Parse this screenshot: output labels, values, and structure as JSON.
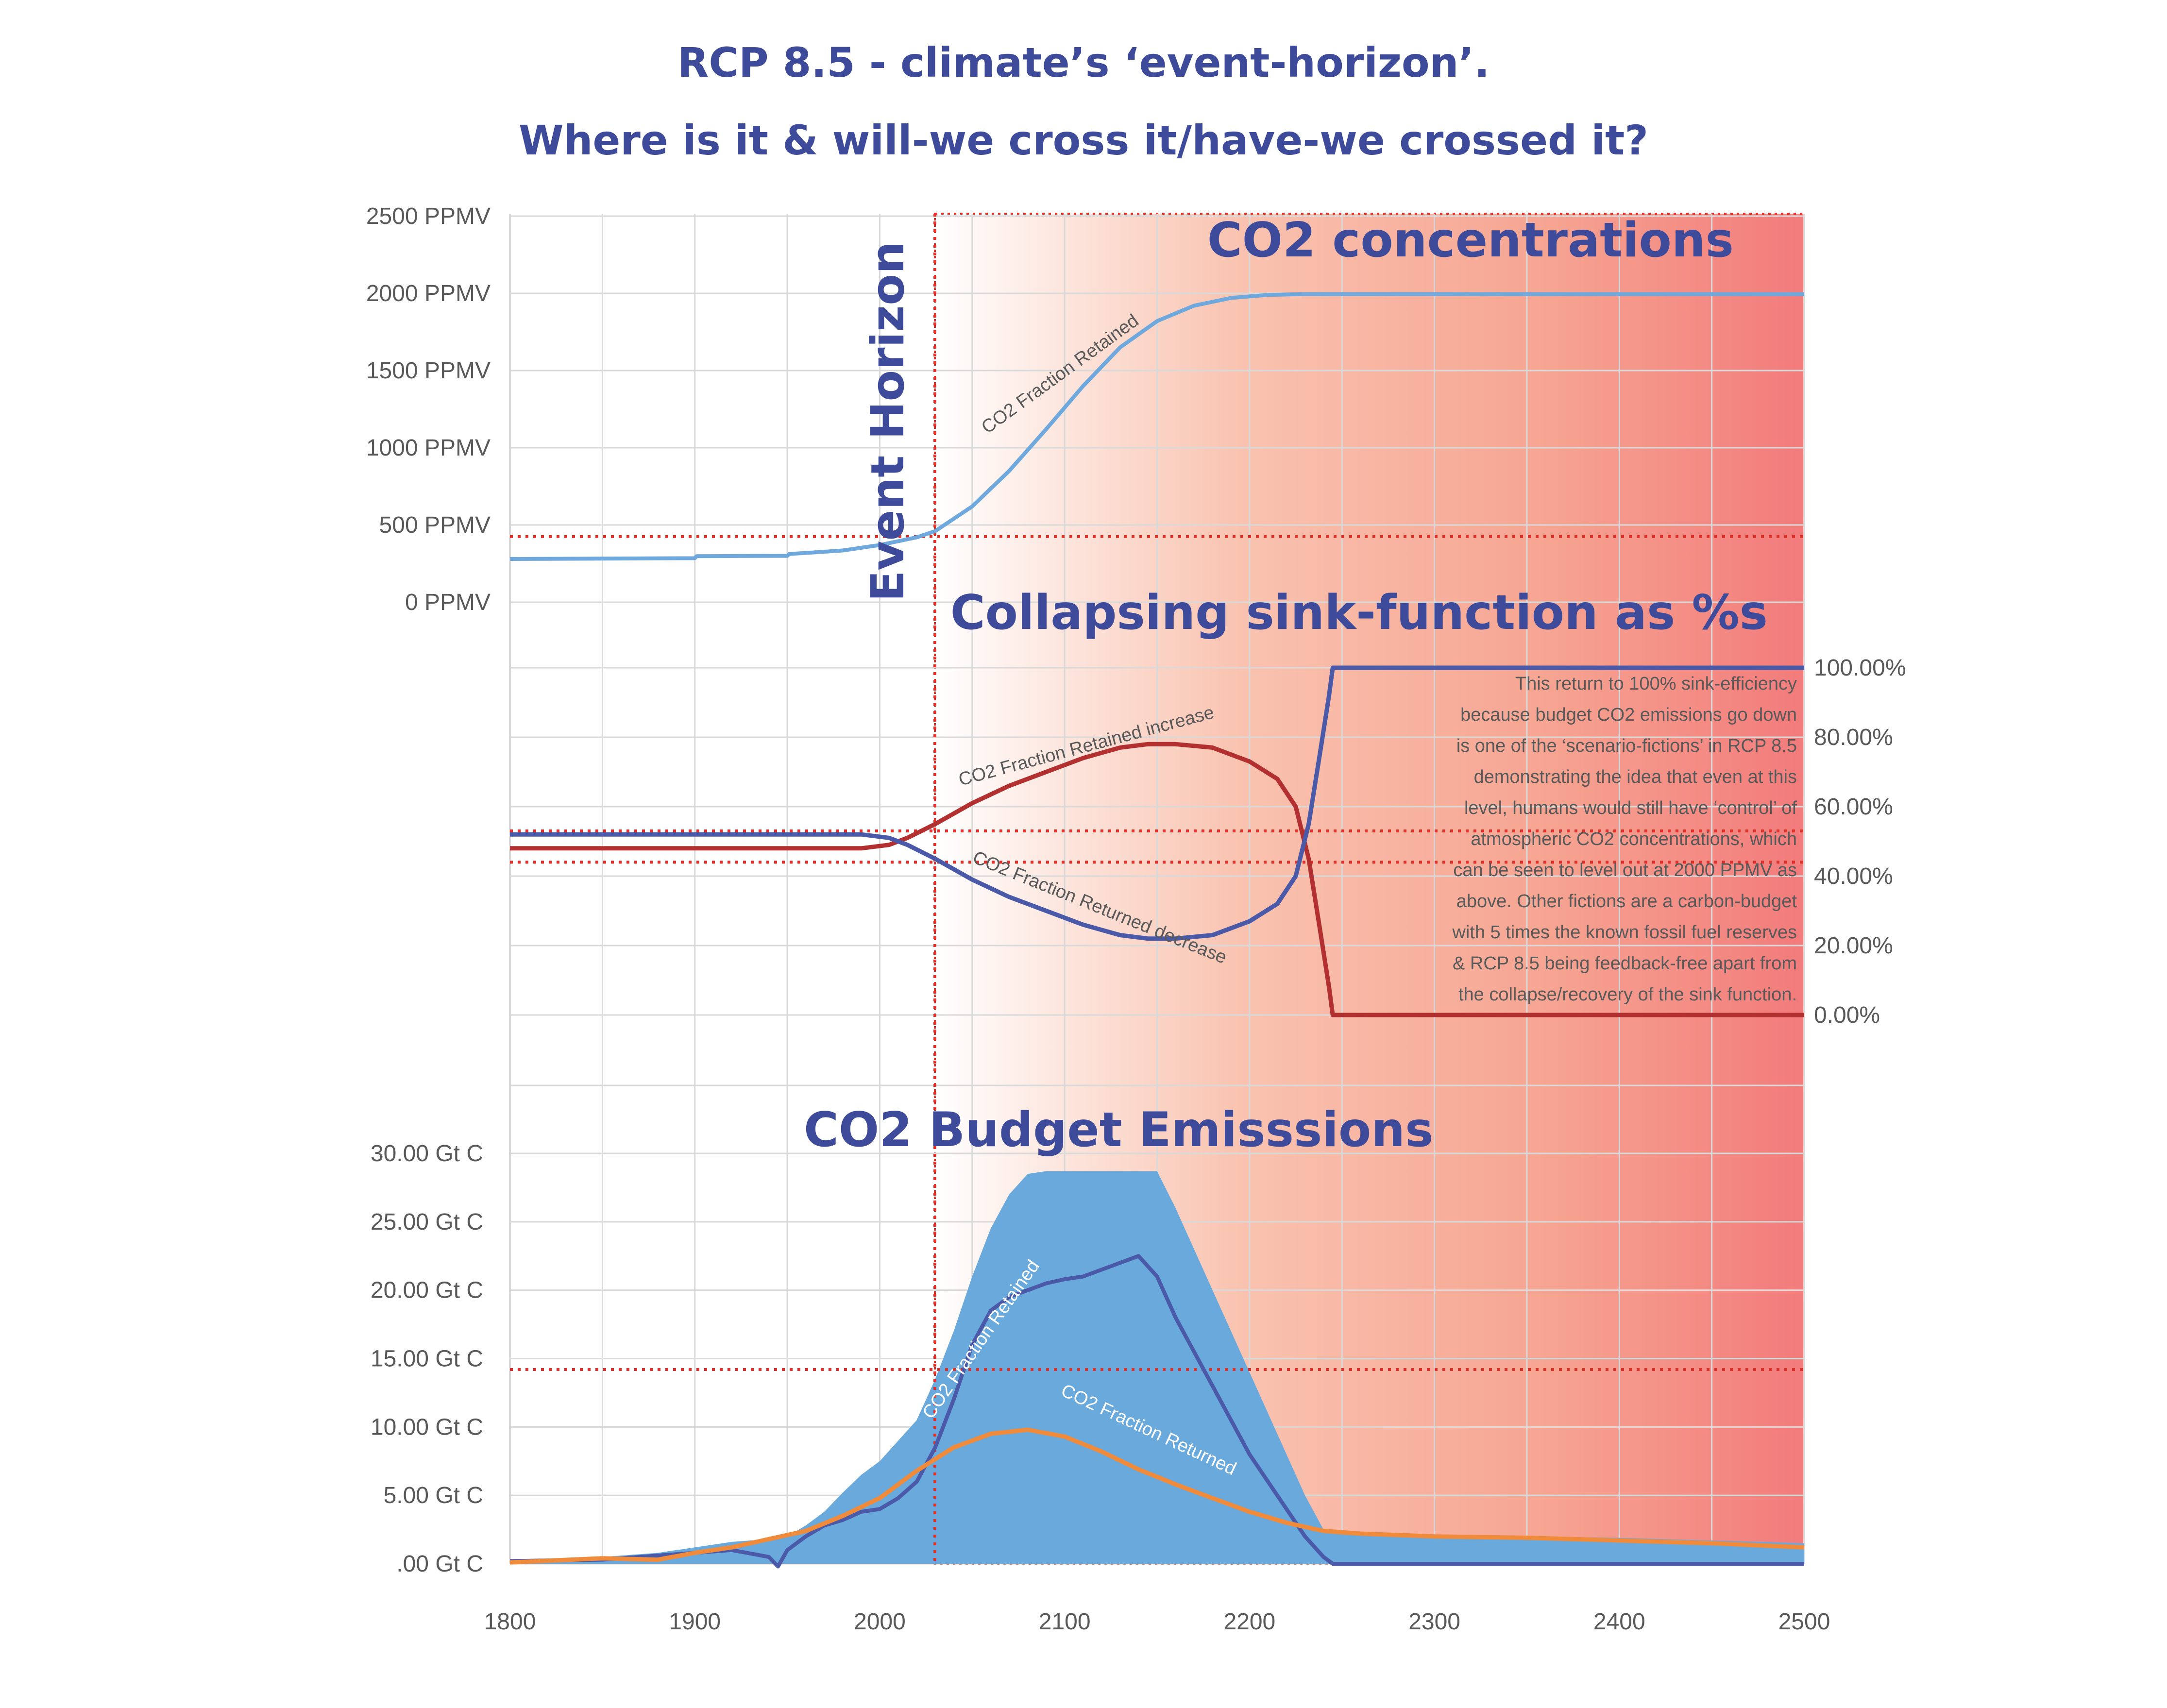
{
  "title_line1": "RCP 8.5 - climate’s ‘event-horizon’.",
  "title_line2": "Where is it & will-we cross it/have-we crossed it?",
  "event_horizon_label": "Event Horizon",
  "panel_titles": {
    "concentrations": "CO2 concentrations",
    "sink": "Collapsing sink-function as %s",
    "budget": "CO2 Budget Emisssions"
  },
  "curve_labels": {
    "top_retained": "CO2 Fraction Retained",
    "mid_retained_increase": "CO2 Fraction Retained increase",
    "mid_returned_decrease": "CO2 Fraction Returned decrease",
    "bot_retained": "CO2 Fraction Retained",
    "bot_returned": "CO2 Fraction Returned"
  },
  "annotation": [
    "This return to 100% sink-efficiency",
    "because budget CO2 emissions go down",
    "is one of the ‘scenario-fictions’ in RCP 8.5",
    "demonstrating the idea that even at this",
    "level, humans would still have ‘control’ of",
    "atmospheric CO2 concentrations, which",
    "can be seen to level out at 2000 PPMV as",
    "above. Other fictions are a carbon-budget",
    "with 5 times the known fossil fuel reserves",
    "& RCP 8.5 being feedback-free apart from",
    "the collapse/recovery of the sink function."
  ],
  "colors": {
    "title": "#3d4b9a",
    "light_blue": "#6fa8dc",
    "dark_blue": "#4a5aa8",
    "dark_red": "#b23030",
    "orange": "#f08b3c",
    "area_blue": "#6aa9dc",
    "dotted_red": "#e0302a",
    "gradient_end": "#f27b7b"
  },
  "chart_data": [
    {
      "type": "line",
      "title": "CO2 concentrations",
      "x_ticks": [
        "1800",
        "1900",
        "2000",
        "2100",
        "2200",
        "2300",
        "2400",
        "2500"
      ],
      "y_ticks": [
        "0 PPMV",
        "500 PPMV",
        "1000 PPMV",
        "1500 PPMV",
        "2000 PPMV",
        "2500 PPMV"
      ],
      "xlim": [
        1800,
        2500
      ],
      "ylim": [
        0,
        2500
      ],
      "series": [
        {
          "name": "CO2 Fraction Retained",
          "color": "#6fa8dc",
          "x": [
            1800,
            1900,
            1901,
            1950,
            1951,
            1980,
            2000,
            2020,
            2030,
            2050,
            2070,
            2090,
            2110,
            2130,
            2150,
            2170,
            2190,
            2210,
            2230,
            2500
          ],
          "y": [
            280,
            285,
            298,
            300,
            312,
            335,
            370,
            420,
            460,
            620,
            850,
            1120,
            1400,
            1650,
            1820,
            1920,
            1970,
            1990,
            1995,
            1995
          ]
        }
      ],
      "reference_y": 425
    },
    {
      "type": "line",
      "title": "Collapsing sink-function as %s",
      "y_ticks": [
        "0.00%",
        "20.00%",
        "40.00%",
        "60.00%",
        "80.00%",
        "100.00%"
      ],
      "ylim": [
        0,
        100
      ],
      "series": [
        {
          "name": "CO2 Fraction Retained increase",
          "color": "#b23030",
          "x": [
            1800,
            1990,
            2005,
            2015,
            2030,
            2050,
            2070,
            2090,
            2110,
            2130,
            2145,
            2160,
            2180,
            2200,
            2215,
            2225,
            2232,
            2238,
            2243,
            2245,
            2500
          ],
          "y": [
            48,
            48,
            49,
            51,
            55,
            61,
            66,
            70,
            74,
            77,
            78,
            78,
            77,
            73,
            68,
            60,
            45,
            25,
            8,
            0,
            0
          ]
        },
        {
          "name": "CO2 Fraction Returned decrease",
          "color": "#4a5aa8",
          "x": [
            1800,
            1990,
            2005,
            2015,
            2030,
            2050,
            2070,
            2090,
            2110,
            2130,
            2145,
            2160,
            2180,
            2200,
            2215,
            2225,
            2232,
            2238,
            2243,
            2245,
            2500
          ],
          "y": [
            52,
            52,
            51,
            49,
            45,
            39,
            34,
            30,
            26,
            23,
            22,
            22,
            23,
            27,
            32,
            40,
            55,
            75,
            92,
            100,
            100
          ]
        }
      ],
      "reference_y": [
        44,
        53
      ]
    },
    {
      "type": "area",
      "title": "CO2 Budget Emisssions",
      "y_ticks": [
        ".00 Gt C",
        "5.00 Gt C",
        "10.00 Gt C",
        "15.00 Gt C",
        "20.00 Gt C",
        "25.00 Gt C",
        "30.00 Gt C"
      ],
      "ylim": [
        0,
        30
      ],
      "series": [
        {
          "name": "CO2 Budget Emisssions",
          "color": "#6aa9dc",
          "x": [
            1800,
            1850,
            1880,
            1900,
            1920,
            1940,
            1950,
            1960,
            1970,
            1980,
            1990,
            2000,
            2010,
            2020,
            2030,
            2040,
            2050,
            2060,
            2070,
            2080,
            2090,
            2100,
            2110,
            2120,
            2130,
            2140,
            2150,
            2160,
            2170,
            2180,
            2190,
            2200,
            2210,
            2220,
            2230,
            2240,
            2245,
            2300,
            2350,
            2400,
            2450,
            2500
          ],
          "y": [
            0.3,
            0.5,
            0.8,
            1.2,
            1.6,
            1.8,
            2.0,
            2.8,
            3.8,
            5.2,
            6.5,
            7.5,
            9.0,
            10.5,
            13.5,
            17.0,
            21.0,
            24.5,
            27.0,
            28.5,
            28.7,
            28.7,
            28.7,
            28.7,
            28.7,
            28.7,
            28.7,
            26.0,
            23.0,
            20.0,
            17.0,
            14.0,
            11.0,
            8.0,
            5.0,
            2.5,
            2.2,
            2.1,
            2.0,
            1.9,
            1.7,
            1.5
          ]
        },
        {
          "name": "CO2 Fraction Retained",
          "color": "#4a5aa8",
          "x": [
            1800,
            1850,
            1880,
            1900,
            1920,
            1940,
            1945,
            1950,
            1960,
            1970,
            1980,
            1990,
            2000,
            2010,
            2020,
            2030,
            2040,
            2050,
            2060,
            2070,
            2080,
            2090,
            2100,
            2110,
            2120,
            2130,
            2140,
            2150,
            2160,
            2170,
            2180,
            2190,
            2200,
            2210,
            2220,
            2230,
            2240,
            2245,
            2500
          ],
          "y": [
            0.2,
            0.3,
            0.6,
            0.8,
            1.0,
            0.5,
            -0.2,
            1.0,
            2.0,
            2.8,
            3.2,
            3.8,
            4.0,
            4.8,
            6.0,
            8.5,
            12.0,
            16.0,
            18.5,
            19.5,
            20.0,
            20.5,
            20.8,
            21.0,
            21.5,
            22.0,
            22.5,
            21.0,
            18.0,
            15.5,
            13.0,
            10.5,
            8.0,
            6.0,
            4.0,
            2.0,
            0.5,
            0.0,
            0.0
          ]
        },
        {
          "name": "CO2 Fraction Returned",
          "color": "#f08b3c",
          "x": [
            1800,
            1850,
            1880,
            1900,
            1920,
            1940,
            1960,
            1980,
            2000,
            2020,
            2040,
            2060,
            2080,
            2100,
            2120,
            2140,
            2160,
            2180,
            2200,
            2220,
            2240,
            2260,
            2300,
            2350,
            2400,
            2450,
            2500
          ],
          "y": [
            0.1,
            0.4,
            0.3,
            0.8,
            1.2,
            1.8,
            2.4,
            3.5,
            4.8,
            6.8,
            8.5,
            9.5,
            9.8,
            9.3,
            8.2,
            6.9,
            5.8,
            4.8,
            3.8,
            3.0,
            2.4,
            2.2,
            2.0,
            1.9,
            1.7,
            1.5,
            1.2
          ]
        }
      ],
      "reference_y": 14.2
    }
  ]
}
